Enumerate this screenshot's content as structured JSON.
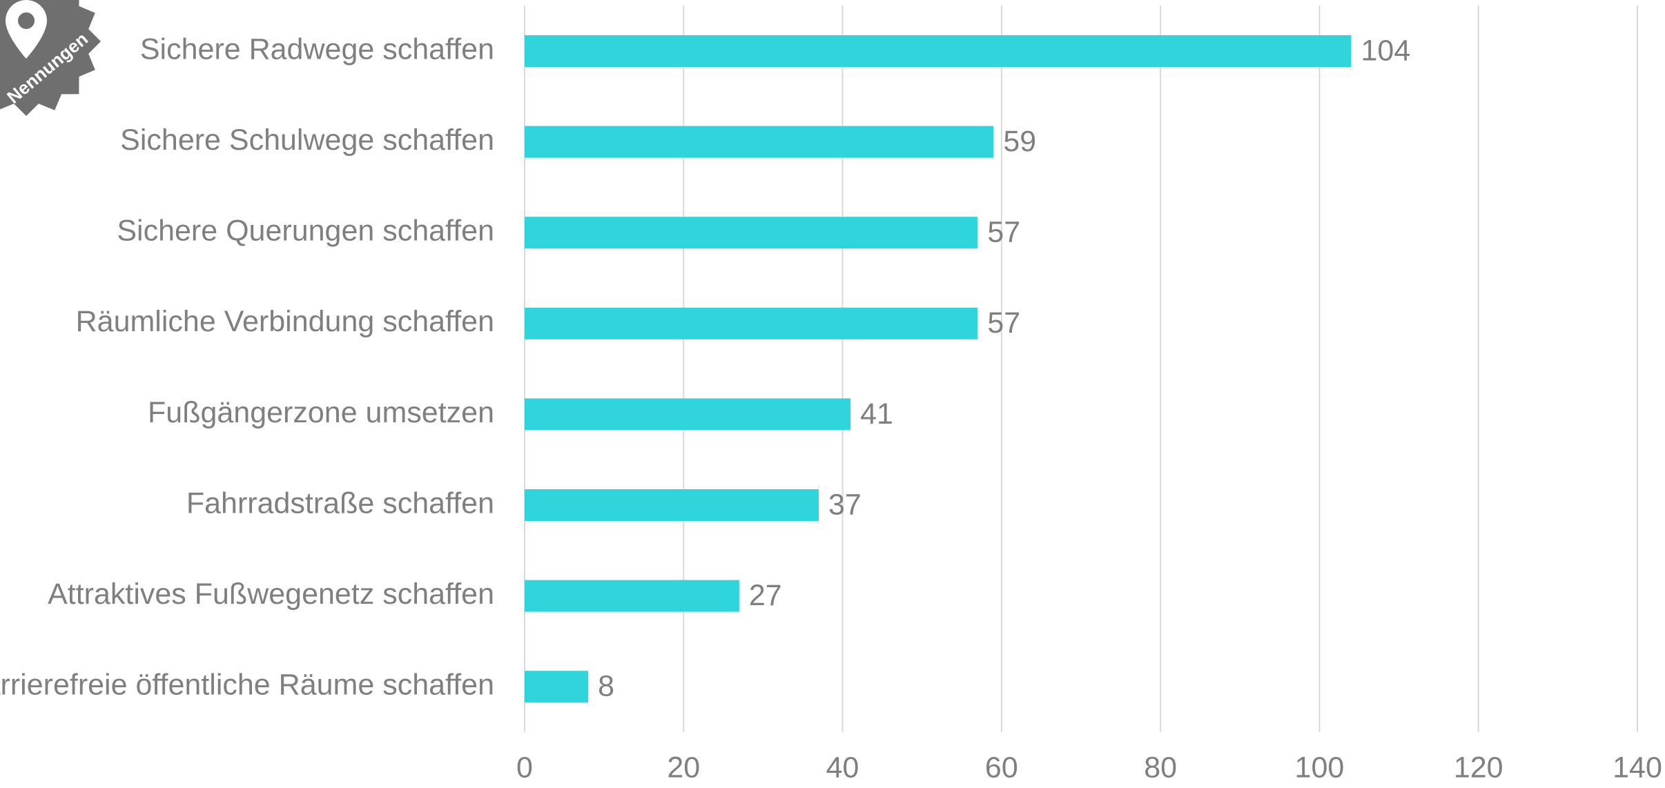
{
  "chart_data": {
    "type": "bar",
    "orientation": "horizontal",
    "annotation": "Nennungen",
    "categories": [
      "Sichere Radwege schaffen",
      "Sichere Schulwege schaffen",
      "Sichere Querungen schaffen",
      "Räumliche Verbindung schaffen",
      "Fußgängerzone umsetzen",
      "Fahrradstraße schaffen",
      "Attraktives Fußwegenetz schaffen",
      "Barrierefreie öffentliche Räume schaffen"
    ],
    "values": [
      104,
      59,
      57,
      57,
      41,
      37,
      27,
      8
    ],
    "color": "#30d5dc",
    "xlim": [
      0,
      140
    ],
    "xticks": [
      0,
      20,
      40,
      60,
      80,
      100,
      120,
      140
    ],
    "grid": true
  }
}
